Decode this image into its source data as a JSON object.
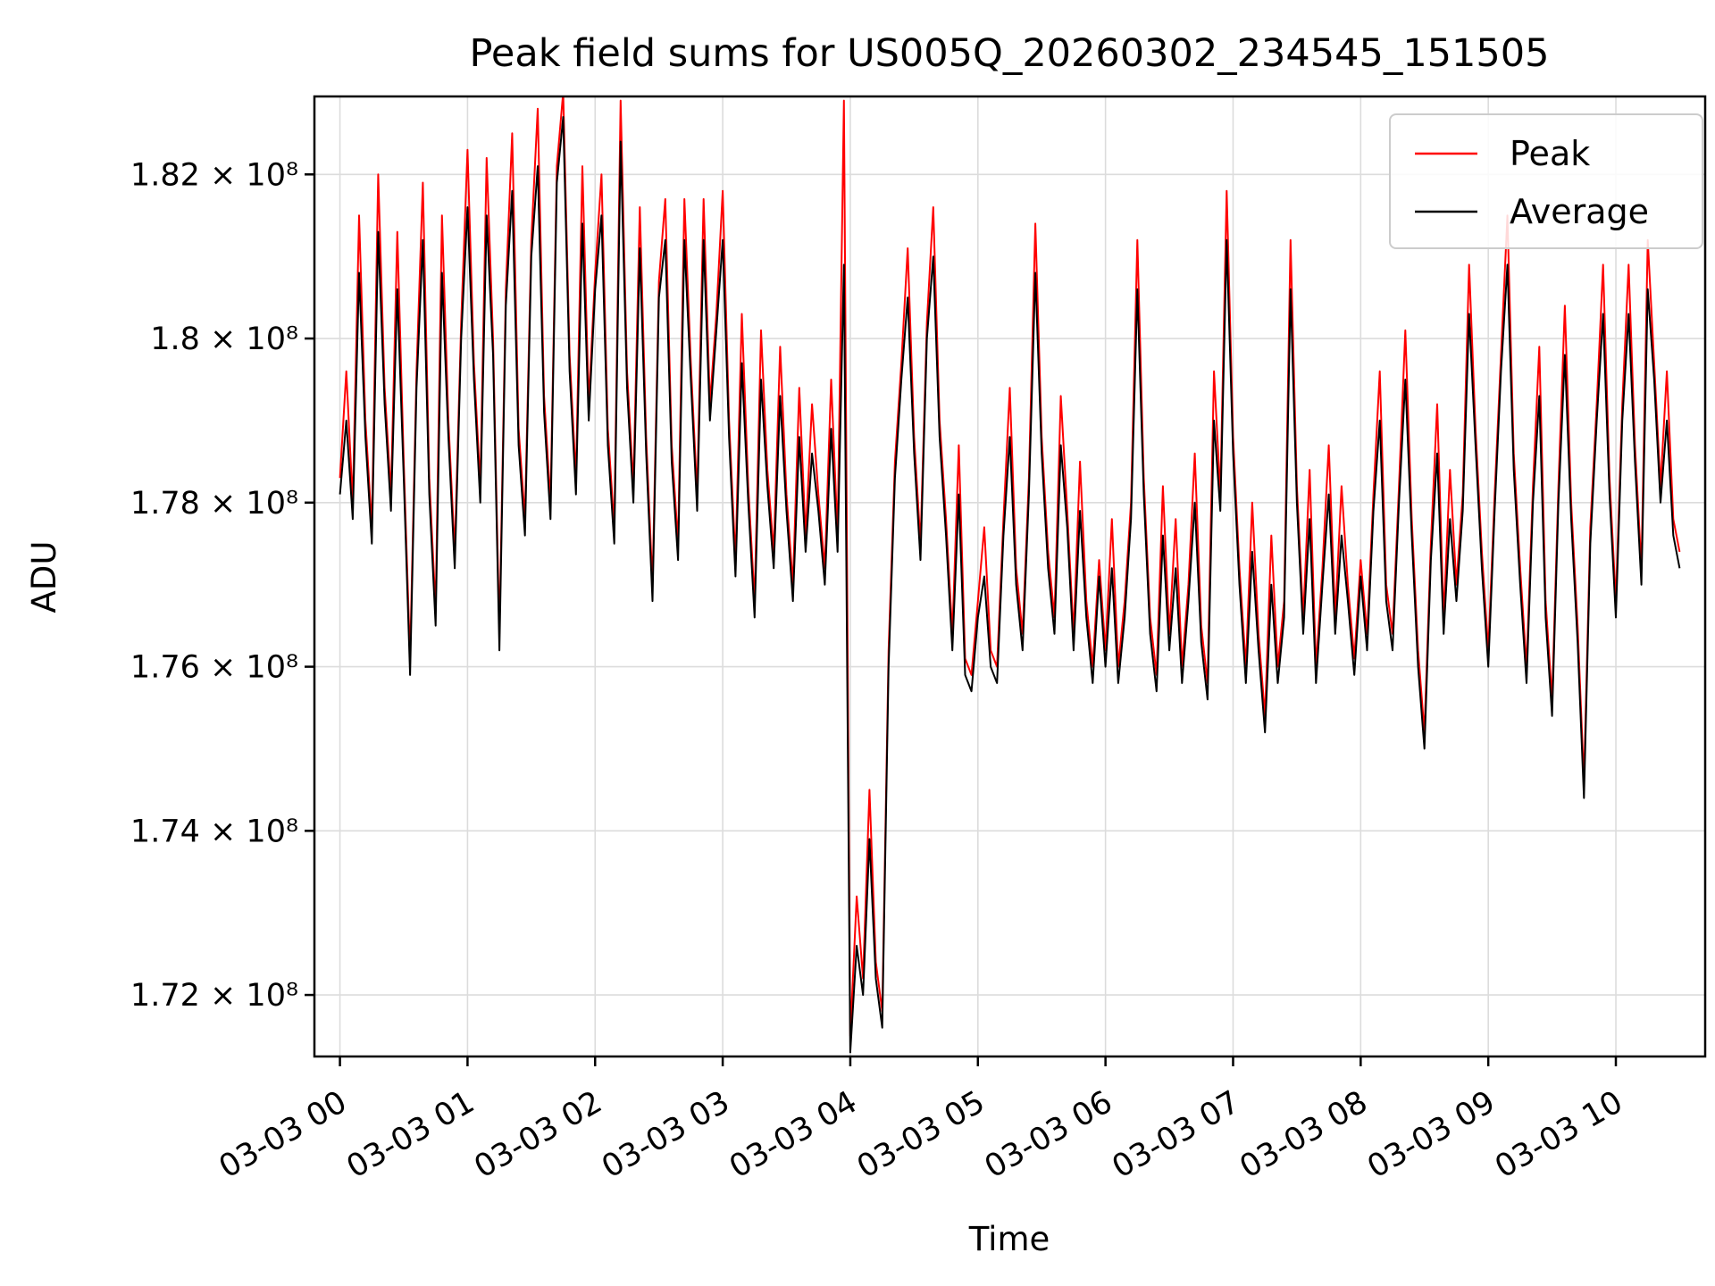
{
  "chart_data": {
    "type": "line",
    "title": "Peak field sums for US005Q_20260302_234545_151505",
    "xlabel": "Time",
    "ylabel": "ADU",
    "value_units": "ADU, values in multiples of 1e8",
    "grid": true,
    "grid_color": "#dcdcdc",
    "axes_color": "#000000",
    "background_color": "#ffffff",
    "xlim_hours": [
      -0.2,
      10.7
    ],
    "ylim": [
      1.7125,
      1.8295
    ],
    "x_start_hours": 0,
    "x_step_hours": 0.05,
    "x_ticks": [
      {
        "h": 0,
        "label": "03-03 00"
      },
      {
        "h": 1,
        "label": "03-03 01"
      },
      {
        "h": 2,
        "label": "03-03 02"
      },
      {
        "h": 3,
        "label": "03-03 03"
      },
      {
        "h": 4,
        "label": "03-03 04"
      },
      {
        "h": 5,
        "label": "03-03 05"
      },
      {
        "h": 6,
        "label": "03-03 06"
      },
      {
        "h": 7,
        "label": "03-03 07"
      },
      {
        "h": 8,
        "label": "03-03 08"
      },
      {
        "h": 9,
        "label": "03-03 09"
      },
      {
        "h": 10,
        "label": "03-03 10"
      }
    ],
    "y_ticks": [
      {
        "v": 1.72,
        "label": "1.72 × 10⁸"
      },
      {
        "v": 1.74,
        "label": "1.74 × 10⁸"
      },
      {
        "v": 1.76,
        "label": "1.76 × 10⁸"
      },
      {
        "v": 1.78,
        "label": "1.78 × 10⁸"
      },
      {
        "v": 1.8,
        "label": "1.8 × 10⁸"
      },
      {
        "v": 1.82,
        "label": "1.82 × 10⁸"
      }
    ],
    "legend": {
      "position": "upper right",
      "entries": [
        {
          "name": "Peak",
          "color": "#ff0000"
        },
        {
          "name": "Average",
          "color": "#000000"
        }
      ]
    },
    "series": [
      {
        "name": "Peak",
        "color": "#ff0000",
        "values": [
          1.783,
          1.796,
          1.78,
          1.815,
          1.79,
          1.777,
          1.82,
          1.794,
          1.781,
          1.813,
          1.785,
          1.761,
          1.796,
          1.819,
          1.783,
          1.767,
          1.815,
          1.79,
          1.774,
          1.802,
          1.823,
          1.797,
          1.782,
          1.822,
          1.8,
          1.764,
          1.806,
          1.825,
          1.789,
          1.778,
          1.812,
          1.828,
          1.793,
          1.78,
          1.821,
          1.83,
          1.798,
          1.783,
          1.821,
          1.792,
          1.808,
          1.82,
          1.789,
          1.777,
          1.829,
          1.796,
          1.782,
          1.816,
          1.788,
          1.77,
          1.807,
          1.817,
          1.787,
          1.775,
          1.817,
          1.797,
          1.781,
          1.817,
          1.792,
          1.803,
          1.818,
          1.79,
          1.773,
          1.803,
          1.782,
          1.768,
          1.801,
          1.784,
          1.774,
          1.799,
          1.781,
          1.77,
          1.794,
          1.776,
          1.792,
          1.781,
          1.772,
          1.795,
          1.776,
          1.829,
          1.715,
          1.732,
          1.722,
          1.745,
          1.724,
          1.718,
          1.762,
          1.785,
          1.797,
          1.811,
          1.788,
          1.775,
          1.802,
          1.816,
          1.79,
          1.778,
          1.764,
          1.787,
          1.761,
          1.759,
          1.768,
          1.777,
          1.762,
          1.76,
          1.778,
          1.794,
          1.772,
          1.764,
          1.783,
          1.814,
          1.788,
          1.774,
          1.766,
          1.793,
          1.779,
          1.764,
          1.785,
          1.768,
          1.76,
          1.773,
          1.762,
          1.778,
          1.76,
          1.768,
          1.78,
          1.812,
          1.783,
          1.766,
          1.759,
          1.782,
          1.764,
          1.778,
          1.76,
          1.77,
          1.786,
          1.765,
          1.758,
          1.796,
          1.781,
          1.818,
          1.788,
          1.772,
          1.76,
          1.78,
          1.764,
          1.754,
          1.776,
          1.76,
          1.768,
          1.812,
          1.782,
          1.766,
          1.784,
          1.76,
          1.772,
          1.787,
          1.766,
          1.782,
          1.77,
          1.761,
          1.773,
          1.764,
          1.781,
          1.796,
          1.77,
          1.764,
          1.782,
          1.801,
          1.778,
          1.762,
          1.752,
          1.775,
          1.792,
          1.766,
          1.784,
          1.77,
          1.781,
          1.809,
          1.789,
          1.774,
          1.762,
          1.781,
          1.798,
          1.815,
          1.786,
          1.772,
          1.76,
          1.782,
          1.799,
          1.768,
          1.756,
          1.782,
          1.804,
          1.78,
          1.765,
          1.746,
          1.777,
          1.792,
          1.809,
          1.783,
          1.768,
          1.792,
          1.809,
          1.787,
          1.772,
          1.812,
          1.797,
          1.782,
          1.796,
          1.778,
          1.774
        ]
      },
      {
        "name": "Average",
        "color": "#000000",
        "values": [
          1.781,
          1.79,
          1.778,
          1.808,
          1.788,
          1.775,
          1.813,
          1.792,
          1.779,
          1.806,
          1.783,
          1.759,
          1.794,
          1.812,
          1.781,
          1.765,
          1.808,
          1.788,
          1.772,
          1.8,
          1.816,
          1.795,
          1.78,
          1.815,
          1.798,
          1.762,
          1.804,
          1.818,
          1.787,
          1.776,
          1.81,
          1.821,
          1.791,
          1.778,
          1.819,
          1.827,
          1.796,
          1.781,
          1.814,
          1.79,
          1.806,
          1.815,
          1.787,
          1.775,
          1.824,
          1.794,
          1.78,
          1.811,
          1.786,
          1.768,
          1.805,
          1.812,
          1.785,
          1.773,
          1.812,
          1.795,
          1.779,
          1.812,
          1.79,
          1.801,
          1.812,
          1.788,
          1.771,
          1.797,
          1.78,
          1.766,
          1.795,
          1.782,
          1.772,
          1.793,
          1.779,
          1.768,
          1.788,
          1.774,
          1.786,
          1.779,
          1.77,
          1.789,
          1.774,
          1.809,
          1.713,
          1.726,
          1.72,
          1.739,
          1.722,
          1.716,
          1.76,
          1.783,
          1.795,
          1.805,
          1.786,
          1.773,
          1.8,
          1.81,
          1.788,
          1.776,
          1.762,
          1.781,
          1.759,
          1.757,
          1.766,
          1.771,
          1.76,
          1.758,
          1.776,
          1.788,
          1.77,
          1.762,
          1.781,
          1.808,
          1.786,
          1.772,
          1.764,
          1.787,
          1.777,
          1.762,
          1.779,
          1.766,
          1.758,
          1.771,
          1.76,
          1.772,
          1.758,
          1.766,
          1.778,
          1.806,
          1.781,
          1.764,
          1.757,
          1.776,
          1.762,
          1.772,
          1.758,
          1.768,
          1.78,
          1.763,
          1.756,
          1.79,
          1.779,
          1.812,
          1.786,
          1.77,
          1.758,
          1.774,
          1.762,
          1.752,
          1.77,
          1.758,
          1.766,
          1.806,
          1.78,
          1.764,
          1.778,
          1.758,
          1.77,
          1.781,
          1.764,
          1.776,
          1.768,
          1.759,
          1.771,
          1.762,
          1.779,
          1.79,
          1.768,
          1.762,
          1.78,
          1.795,
          1.776,
          1.76,
          1.75,
          1.773,
          1.786,
          1.764,
          1.778,
          1.768,
          1.779,
          1.803,
          1.787,
          1.772,
          1.76,
          1.779,
          1.796,
          1.809,
          1.784,
          1.77,
          1.758,
          1.78,
          1.793,
          1.766,
          1.754,
          1.78,
          1.798,
          1.778,
          1.763,
          1.744,
          1.775,
          1.79,
          1.803,
          1.781,
          1.766,
          1.79,
          1.803,
          1.785,
          1.77,
          1.806,
          1.795,
          1.78,
          1.79,
          1.776,
          1.772
        ]
      }
    ]
  }
}
